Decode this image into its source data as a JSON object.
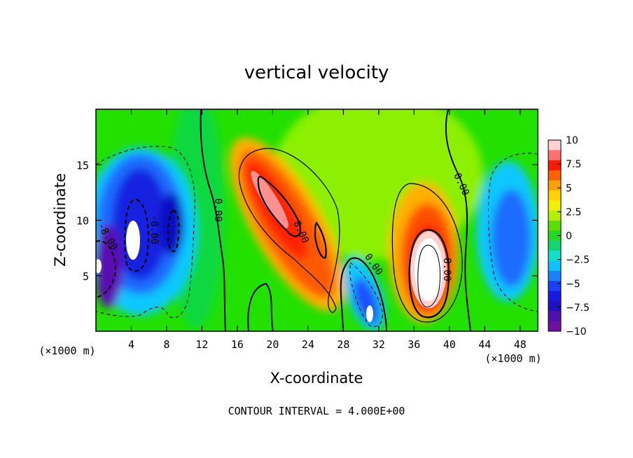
{
  "chart_data": {
    "type": "heatmap",
    "title": "vertical velocity",
    "xlabel": "X-coordinate",
    "ylabel": "Z-coordinate",
    "x_unit": "(×1000 m)",
    "y_unit": "(×1000 m)",
    "xlim": [
      0,
      50
    ],
    "ylim": [
      0,
      20
    ],
    "x_ticks": [
      4,
      8,
      12,
      16,
      20,
      24,
      28,
      32,
      36,
      40,
      44,
      48
    ],
    "y_ticks": [
      5,
      10,
      15
    ],
    "colorbar": {
      "min": -10,
      "max": 10,
      "ticks": [
        10,
        7.5,
        5,
        2.5,
        0,
        -2.5,
        -5,
        -7.5,
        -10
      ],
      "tick_labels": [
        "10",
        "7.5",
        "5",
        "2.5",
        "0",
        "−2.5",
        "−5",
        "−7.5",
        "−10"
      ]
    },
    "contour_interval": 4.0,
    "contour_labels": [
      {
        "text": "0.00",
        "x": 14,
        "y": 11,
        "rotation": 90
      },
      {
        "text": "8.00",
        "x": 23,
        "y": 9,
        "rotation": 65
      },
      {
        "text": "0.00",
        "x": 31,
        "y": 6,
        "rotation": 55
      },
      {
        "text": "8.00",
        "x": 39.5,
        "y": 5.5,
        "rotation": 90
      },
      {
        "text": "0.00",
        "x": 41,
        "y": 13.5,
        "rotation": 65
      },
      {
        "text": "-8.00",
        "x": 6.5,
        "y": 9,
        "rotation": 90
      },
      {
        "text": "-8.00",
        "x": 2,
        "y": 8.5,
        "rotation": 60
      }
    ],
    "features": [
      {
        "sign": "negative",
        "x": 5,
        "z": 8,
        "peak": -11
      },
      {
        "sign": "negative",
        "x": 1.5,
        "z": 7,
        "peak": -10
      },
      {
        "sign": "negative",
        "x": 8.5,
        "z": 10,
        "peak": -8
      },
      {
        "sign": "positive",
        "x": 21,
        "z": 12,
        "peak": 10
      },
      {
        "sign": "positive",
        "x": 25,
        "z": 7,
        "peak": 8
      },
      {
        "sign": "negative",
        "x": 31,
        "z": 2.5,
        "peak": -10
      },
      {
        "sign": "positive",
        "x": 38,
        "z": 6,
        "peak": 12
      },
      {
        "sign": "negative",
        "x": 46,
        "z": 8,
        "peak": -6
      }
    ]
  },
  "footer": {
    "contour_interval_text": "CONTOUR INTERVAL = 4.000E+00"
  }
}
